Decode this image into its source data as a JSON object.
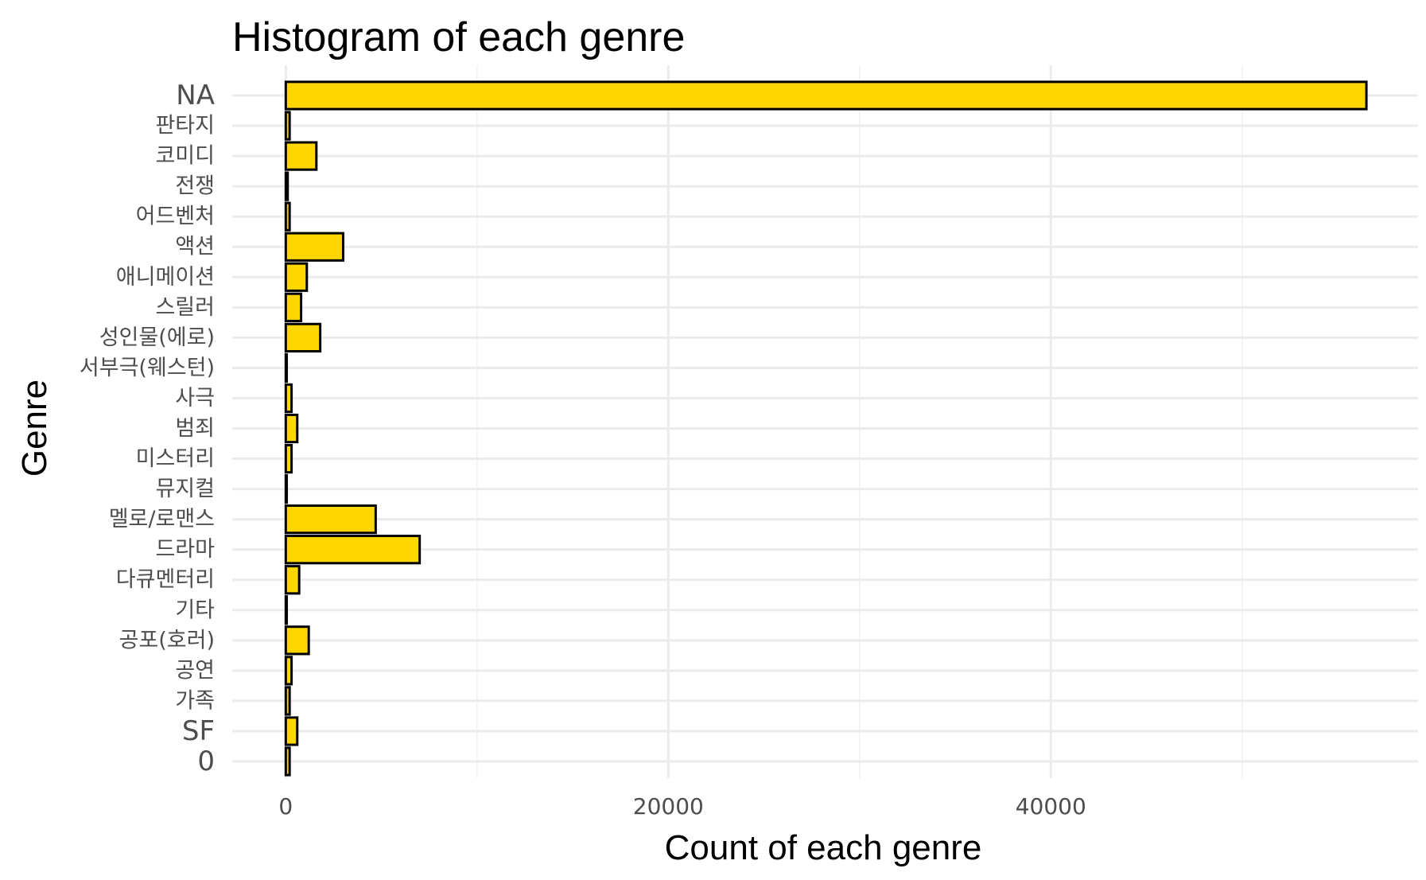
{
  "chart_data": {
    "type": "bar",
    "orientation": "horizontal",
    "title": "Histogram of each genre",
    "xlabel": "Count of each genre",
    "ylabel": "Genre",
    "categories": [
      "0",
      "SF",
      "가족",
      "공연",
      "공포(호러)",
      "기타",
      "다큐멘터리",
      "드라마",
      "멜로/로맨스",
      "뮤지컬",
      "미스터리",
      "범죄",
      "사극",
      "서부극(웨스턴)",
      "성인물(에로)",
      "스릴러",
      "애니메이션",
      "액션",
      "어드벤처",
      "전쟁",
      "코미디",
      "판타지",
      "NA"
    ],
    "values": [
      200,
      600,
      200,
      300,
      1200,
      50,
      700,
      7000,
      4700,
      50,
      300,
      600,
      300,
      50,
      1800,
      800,
      1100,
      3000,
      200,
      100,
      1600,
      200,
      56500
    ],
    "xlim": [
      -2800,
      59200
    ],
    "xticks": [
      0,
      20000,
      40000
    ],
    "xtick_labels": [
      "0",
      "20000",
      "40000"
    ],
    "bar_fill": "#FFD700",
    "bar_stroke": "#000000",
    "grid": true,
    "legend": "none"
  }
}
